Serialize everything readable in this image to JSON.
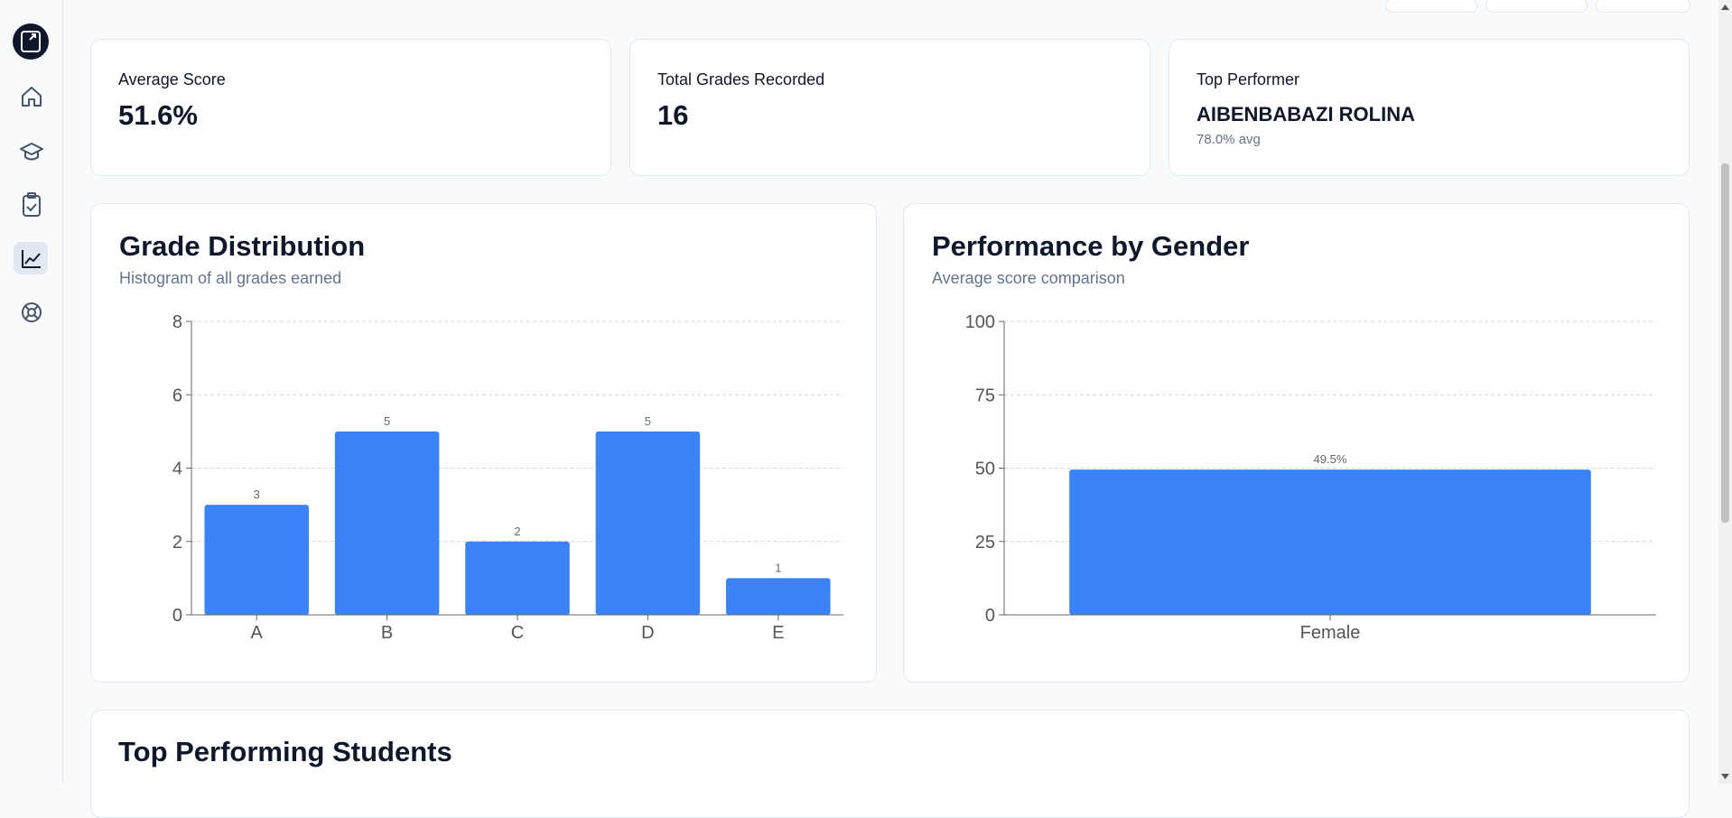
{
  "stats": [
    {
      "label": "Average Score",
      "value": "51.6%"
    },
    {
      "label": "Total Grades Recorded",
      "value": "16"
    },
    {
      "label": "Top Performer",
      "value": "AIBENBABAZI ROLINA",
      "note": "78.0% avg"
    }
  ],
  "chart_data": [
    {
      "type": "bar",
      "title": "Grade Distribution",
      "subtitle": "Histogram of all grades earned",
      "categories": [
        "A",
        "B",
        "C",
        "D",
        "E"
      ],
      "values": [
        3,
        5,
        2,
        5,
        1
      ],
      "color": "#3b82f6",
      "ylim": [
        0,
        8
      ],
      "yticks": [
        0,
        2,
        4,
        6,
        8
      ],
      "grid": true,
      "data_labels": true
    },
    {
      "type": "bar",
      "title": "Performance by Gender",
      "subtitle": "Average score comparison",
      "categories": [
        "Female"
      ],
      "values": [
        49.5
      ],
      "value_labels": [
        "49.5%"
      ],
      "color": "#3b82f6",
      "ylim": [
        0,
        100
      ],
      "yticks": [
        0,
        25,
        50,
        75,
        100
      ],
      "grid": true,
      "data_labels": true
    }
  ],
  "sections": {
    "top_students_title": "Top Performing Students"
  }
}
